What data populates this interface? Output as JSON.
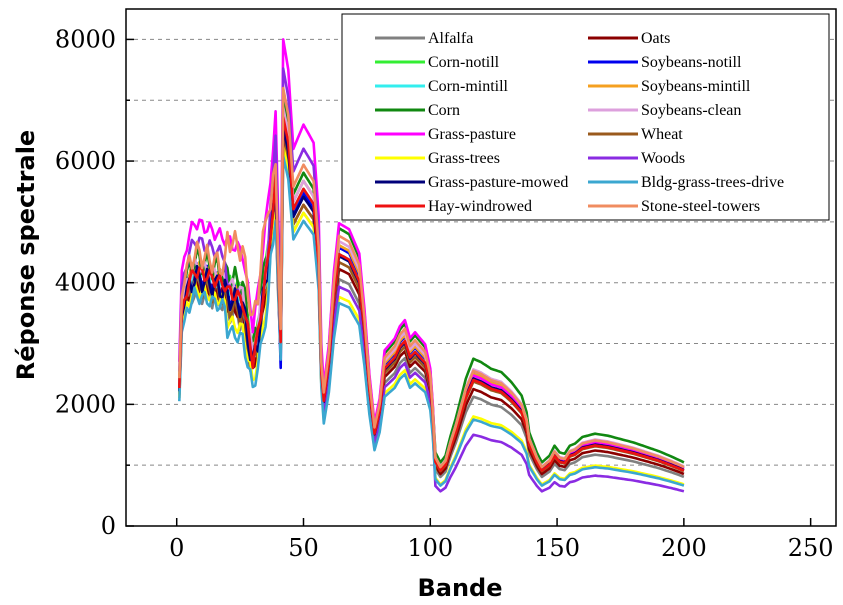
{
  "chart_data": {
    "type": "line",
    "title": "",
    "xlabel": "Bande",
    "ylabel": "Réponse spectrale",
    "xlim": [
      -20,
      260
    ],
    "ylim": [
      0,
      8500
    ],
    "x_ticks": [
      0,
      50,
      100,
      150,
      200,
      250
    ],
    "y_ticks": [
      0,
      2000,
      4000,
      6000,
      8000
    ],
    "legend_position": "top-right",
    "grid": "dashed horizontal",
    "x_count": 200,
    "series": [
      {
        "name": "Alfalfa",
        "color": "#808080",
        "scale": 0.78,
        "lowscale": 0.85,
        "warp": 0.97
      },
      {
        "name": "Oats",
        "color": "#8B0000",
        "scale": 0.8,
        "lowscale": 0.9,
        "warp": 0.97
      },
      {
        "name": "Corn-notill",
        "color": "#33EE33",
        "scale": 0.86,
        "lowscale": 1.0,
        "warp": 1.0
      },
      {
        "name": "Soybeans-notill",
        "color": "#0000EE",
        "scale": 0.83,
        "lowscale": 1.02,
        "warp": 0.98,
        "spike": true
      },
      {
        "name": "Corn-mintill",
        "color": "#33EEEE",
        "scale": 0.84,
        "lowscale": 0.96,
        "warp": 0.98
      },
      {
        "name": "Soybeans-mintill",
        "color": "#F5A020",
        "scale": 0.86,
        "lowscale": 1.0,
        "warp": 0.98
      },
      {
        "name": "Corn",
        "color": "#118811",
        "scale": 0.88,
        "lowscale": 1.1,
        "warp": 1.0
      },
      {
        "name": "Soybeans-clean",
        "color": "#DDA0DD",
        "scale": 0.86,
        "lowscale": 1.03,
        "warp": 0.99
      },
      {
        "name": "Grass-pasture",
        "color": "#FF00FF",
        "scale": 1.0,
        "lowscale": 0.99,
        "warp": 1.0
      },
      {
        "name": "Wheat",
        "color": "#9A5A1C",
        "scale": 0.8,
        "lowscale": 0.95,
        "warp": 0.97
      },
      {
        "name": "Grass-trees",
        "color": "#FFFF00",
        "scale": 0.78,
        "lowscale": 0.72,
        "warp": 0.92
      },
      {
        "name": "Woods",
        "color": "#8A2BE2",
        "scale": 0.94,
        "lowscale": 0.6,
        "warp": 0.88
      },
      {
        "name": "Grass-pasture-mowed",
        "color": "#00007A",
        "scale": 0.82,
        "lowscale": 0.97,
        "warp": 0.98
      },
      {
        "name": "Bldg-grass-trees-drive",
        "color": "#3BA7D0",
        "scale": 0.76,
        "lowscale": 0.7,
        "warp": 0.9
      },
      {
        "name": "Hay-windrowed",
        "color": "#EE1111",
        "scale": 0.84,
        "lowscale": 0.96,
        "warp": 0.98
      },
      {
        "name": "Stone-steel-towers",
        "color": "#F08C60",
        "scale": 0.9,
        "lowscale": 1.02,
        "warp": 1.12
      }
    ],
    "shape_nodes": [
      [
        1,
        2700
      ],
      [
        2,
        4200
      ],
      [
        4,
        4650
      ],
      [
        7,
        5000
      ],
      [
        12,
        4900
      ],
      [
        20,
        4700
      ],
      [
        26,
        4500
      ],
      [
        28,
        3900
      ],
      [
        30,
        3300
      ],
      [
        32,
        3800
      ],
      [
        34,
        4600
      ],
      [
        36,
        5300
      ],
      [
        38,
        6200
      ],
      [
        39,
        6700
      ],
      [
        41,
        3600
      ],
      [
        42,
        8000
      ],
      [
        44,
        7500
      ],
      [
        46,
        6200
      ],
      [
        50,
        6600
      ],
      [
        54,
        6300
      ],
      [
        56,
        5100
      ],
      [
        57,
        3000
      ],
      [
        58,
        2300
      ],
      [
        60,
        3000
      ],
      [
        62,
        4200
      ],
      [
        64,
        5000
      ],
      [
        68,
        4900
      ],
      [
        72,
        4500
      ],
      [
        74,
        3600
      ],
      [
        76,
        2500
      ],
      [
        78,
        1700
      ],
      [
        80,
        2100
      ],
      [
        82,
        2900
      ],
      [
        86,
        3100
      ],
      [
        88,
        3300
      ],
      [
        90,
        3400
      ],
      [
        92,
        3100
      ],
      [
        94,
        3200
      ],
      [
        96,
        3100
      ],
      [
        98,
        3000
      ],
      [
        100,
        2600
      ],
      [
        101,
        2000
      ],
      [
        102,
        1100
      ],
      [
        104,
        950
      ],
      [
        106,
        1050
      ],
      [
        108,
        1350
      ],
      [
        110,
        1600
      ],
      [
        114,
        2200
      ],
      [
        117,
        2500
      ],
      [
        120,
        2450
      ],
      [
        124,
        2350
      ],
      [
        128,
        2300
      ],
      [
        132,
        2150
      ],
      [
        136,
        1950
      ],
      [
        138,
        1700
      ],
      [
        139,
        1400
      ],
      [
        140,
        1300
      ],
      [
        142,
        1100
      ],
      [
        144,
        950
      ],
      [
        147,
        1050
      ],
      [
        149,
        1200
      ],
      [
        151,
        1100
      ],
      [
        153,
        1080
      ],
      [
        155,
        1200
      ],
      [
        157,
        1230
      ],
      [
        160,
        1330
      ],
      [
        165,
        1380
      ],
      [
        170,
        1350
      ],
      [
        180,
        1250
      ],
      [
        190,
        1120
      ],
      [
        195,
        1040
      ],
      [
        199,
        970
      ],
      [
        200,
        950
      ]
    ],
    "noise_amplitude": 150
  }
}
